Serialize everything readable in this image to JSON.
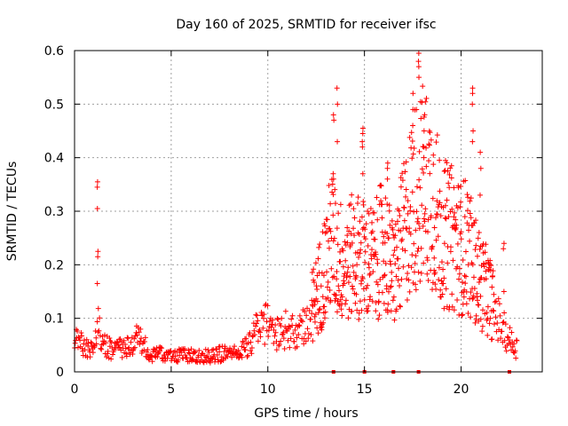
{
  "chart_data": {
    "type": "scatter",
    "title": "Day 160 of 2025, SRMTID for receiver ifsc",
    "xlabel": "GPS time / hours",
    "ylabel": "SRMTID / TECUs",
    "xlim": [
      0,
      24.2
    ],
    "ylim": [
      0,
      0.6
    ],
    "x_ticks": [
      0,
      5,
      10,
      15,
      20
    ],
    "x_tick_labels": [
      "0",
      "5",
      "10",
      "15",
      "20"
    ],
    "y_ticks": [
      0,
      0.1,
      0.2,
      0.3,
      0.4,
      0.5,
      0.6
    ],
    "y_tick_labels": [
      "0",
      "0.1",
      "0.2",
      "0.3",
      "0.4",
      "0.5",
      "0.6"
    ],
    "grid": true,
    "marker": "+",
    "color": "#ff0000",
    "gap_markers_x": [
      13.4,
      15.0,
      16.5,
      17.8,
      22.5
    ],
    "envelope": {
      "x": [
        0,
        0.5,
        1.0,
        1.2,
        1.5,
        2,
        2.5,
        3,
        3.2,
        3.5,
        4,
        5,
        6,
        7,
        8,
        8.5,
        9,
        9.5,
        10,
        10.5,
        11,
        11.5,
        12,
        12.5,
        13,
        13.3,
        13.5,
        14,
        14.5,
        15,
        15.5,
        16,
        16.5,
        17,
        17.5,
        18,
        18.5,
        19,
        19.5,
        20,
        20.3,
        20.6,
        21,
        21.5,
        22,
        22.5,
        23
      ],
      "y": [
        0.06,
        0.05,
        0.04,
        0.1,
        0.05,
        0.04,
        0.045,
        0.05,
        0.08,
        0.05,
        0.035,
        0.03,
        0.03,
        0.03,
        0.035,
        0.035,
        0.05,
        0.08,
        0.09,
        0.07,
        0.08,
        0.07,
        0.1,
        0.14,
        0.2,
        0.25,
        0.22,
        0.2,
        0.22,
        0.21,
        0.2,
        0.24,
        0.18,
        0.25,
        0.32,
        0.35,
        0.33,
        0.26,
        0.25,
        0.23,
        0.24,
        0.2,
        0.17,
        0.14,
        0.09,
        0.06,
        0.04
      ]
    },
    "spikes": [
      {
        "x": 1.2,
        "values": [
          0.355,
          0.345,
          0.305,
          0.225,
          0.215,
          0.165
        ]
      },
      {
        "x": 13.4,
        "values": [
          0.48,
          0.47,
          0.37,
          0.36
        ]
      },
      {
        "x": 13.6,
        "values": [
          0.53,
          0.5,
          0.43
        ]
      },
      {
        "x": 14.9,
        "values": [
          0.455,
          0.445,
          0.43,
          0.42,
          0.37
        ]
      },
      {
        "x": 16.2,
        "values": [
          0.39,
          0.38,
          0.36
        ]
      },
      {
        "x": 17.5,
        "values": [
          0.52,
          0.49,
          0.46
        ]
      },
      {
        "x": 17.8,
        "values": [
          0.595,
          0.58,
          0.57,
          0.55
        ]
      },
      {
        "x": 18.1,
        "values": [
          0.48,
          0.45,
          0.42,
          0.4
        ]
      },
      {
        "x": 20.6,
        "values": [
          0.53,
          0.52,
          0.5,
          0.45,
          0.43
        ]
      },
      {
        "x": 21.0,
        "values": [
          0.41,
          0.38,
          0.33
        ]
      },
      {
        "x": 22.2,
        "values": [
          0.24,
          0.23,
          0.15
        ]
      }
    ]
  }
}
